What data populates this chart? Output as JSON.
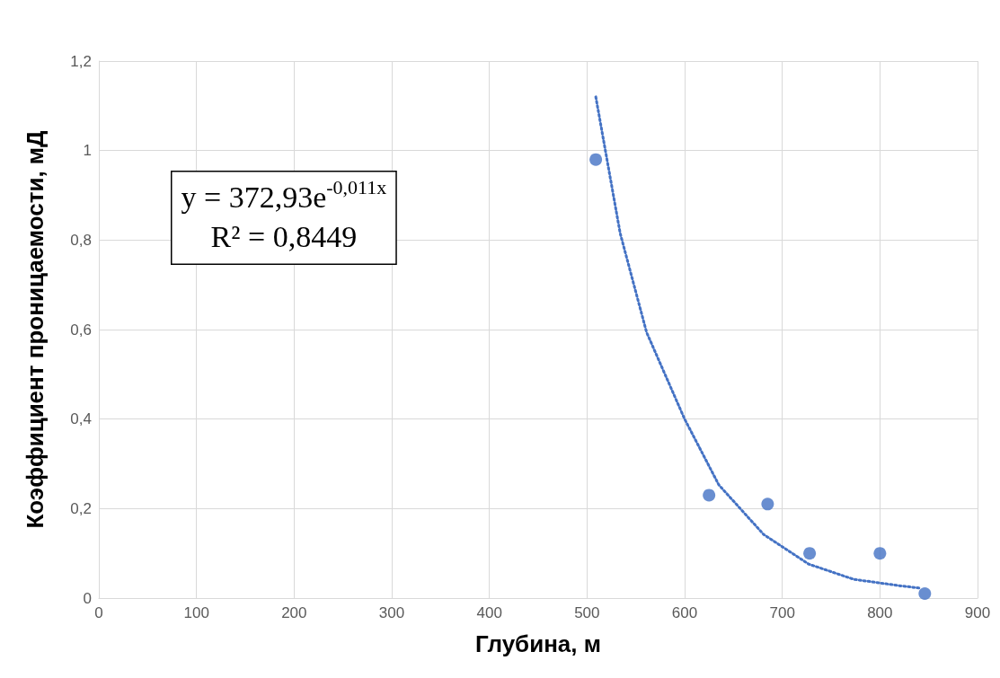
{
  "chart_data": {
    "type": "scatter",
    "xlabel": "Глубина, м",
    "ylabel": "Коэффициент проницаемости, мД",
    "xlim": [
      0,
      900
    ],
    "xticks": [
      0,
      100,
      200,
      300,
      400,
      500,
      600,
      700,
      800,
      900
    ],
    "ylim": [
      0,
      1.2
    ],
    "yticks": [
      {
        "value": 0,
        "label": "0"
      },
      {
        "value": 0.2,
        "label": "0,2"
      },
      {
        "value": 0.4,
        "label": "0,4"
      },
      {
        "value": 0.6,
        "label": "0,6"
      },
      {
        "value": 0.8,
        "label": "0,8"
      },
      {
        "value": 1,
        "label": "1"
      },
      {
        "value": 1.2,
        "label": "1,2"
      }
    ],
    "grid": true,
    "marker": "circle",
    "annotations": [
      "y = 372,93e$^{-0,011x}$",
      "R² = 0,8449"
    ],
    "series": [
      {
        "color": "#4472c4",
        "x": [
          509,
          625,
          685,
          728,
          800,
          846
        ],
        "values": [
          0.98,
          0.23,
          0.21,
          0.1,
          0.1,
          0.01
        ]
      },
      {
        "type": "line",
        "color": "#4472c4",
        "line_style": "dotted",
        "marker": "none",
        "x": [
          509,
          534,
          561,
          600,
          635,
          681,
          727,
          773,
          819,
          842
        ],
        "values": [
          1.12,
          0.815,
          0.594,
          0.4,
          0.253,
          0.142,
          0.076,
          0.042,
          0.028,
          0.022
        ]
      }
    ]
  }
}
